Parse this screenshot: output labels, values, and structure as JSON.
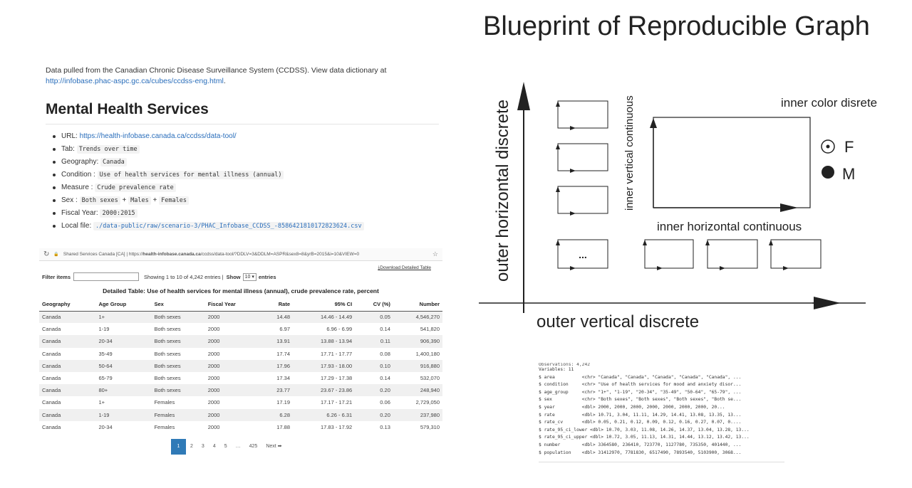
{
  "doc": {
    "intro_text": "Data pulled from the Canadian Chronic Disease Surveillance System (CCDSS). View data dictionary at ",
    "intro_link": "http://infobase.phac-aspc.gc.ca/cubes/ccdss-eng.html",
    "intro_end": ".",
    "heading": "Mental Health Services",
    "items": [
      {
        "label": "URL: ",
        "value": "https://health-infobase.canada.ca/ccdss/data-tool/",
        "kind": "link"
      },
      {
        "label": "Tab: ",
        "value": "Trends over time",
        "kind": "code"
      },
      {
        "label": "Geography: ",
        "value": "Canada",
        "kind": "code"
      },
      {
        "label": "Condition : ",
        "value": "Use of health services for mental illness (annual)",
        "kind": "code"
      },
      {
        "label": "Measure : ",
        "value": "Crude prevalence rate",
        "kind": "code"
      },
      {
        "label": "Sex : ",
        "value": "Both sexes",
        "kind": "code",
        "extra": [
          " + ",
          "Males",
          " + ",
          "Females"
        ]
      },
      {
        "label": "Fiscal Year: ",
        "value": "2000:2015",
        "kind": "code"
      },
      {
        "label": "Local file: ",
        "value": "./data-public/raw/scenario-3/PHAC_Infobase_CCDSS_-8586421810172823624.csv",
        "kind": "code-link"
      }
    ]
  },
  "browser": {
    "tab_site": "Shared Services Canada [CA]",
    "url_prefix": "https://",
    "url_host": "health-infobase.canada.ca",
    "url_path": "/ccdss/data-tool/?DDLV=3&DDLM=ASPR&sex8=8&yrB=2015&i=10&VIEW=0",
    "download_label": "Download Detailed Table",
    "filter_label": "Filter items",
    "showing_text": "Showing 1 to 10 of 4,242 entries |",
    "show_label": "Show",
    "show_value": "10",
    "entries_label": "entries",
    "table_title": "Detailed Table: Use of health services for mental illness (annual), crude prevalence rate, percent",
    "columns": [
      "Geography",
      "Age Group",
      "Sex",
      "Fiscal Year",
      "Rate",
      "95% CI",
      "CV (%)",
      "Number"
    ],
    "rows": [
      [
        "Canada",
        "1+",
        "Both sexes",
        "2000",
        "14.48",
        "14.46 - 14.49",
        "0.05",
        "4,546,270"
      ],
      [
        "Canada",
        "1-19",
        "Both sexes",
        "2000",
        "6.97",
        "6.96 - 6.99",
        "0.14",
        "541,820"
      ],
      [
        "Canada",
        "20-34",
        "Both sexes",
        "2000",
        "13.91",
        "13.88 - 13.94",
        "0.11",
        "906,390"
      ],
      [
        "Canada",
        "35-49",
        "Both sexes",
        "2000",
        "17.74",
        "17.71 - 17.77",
        "0.08",
        "1,400,180"
      ],
      [
        "Canada",
        "50-64",
        "Both sexes",
        "2000",
        "17.96",
        "17.93 - 18.00",
        "0.10",
        "916,880"
      ],
      [
        "Canada",
        "65-79",
        "Both sexes",
        "2000",
        "17.34",
        "17.29 - 17.38",
        "0.14",
        "532,070"
      ],
      [
        "Canada",
        "80+",
        "Both sexes",
        "2000",
        "23.77",
        "23.67 - 23.86",
        "0.20",
        "248,940"
      ],
      [
        "Canada",
        "1+",
        "Females",
        "2000",
        "17.19",
        "17.17 - 17.21",
        "0.06",
        "2,729,050"
      ],
      [
        "Canada",
        "1-19",
        "Females",
        "2000",
        "6.28",
        "6.26 - 6.31",
        "0.20",
        "237,980"
      ],
      [
        "Canada",
        "20-34",
        "Females",
        "2000",
        "17.88",
        "17.83 - 17.92",
        "0.13",
        "579,310"
      ]
    ],
    "pages": [
      "1",
      "2",
      "3",
      "4",
      "5",
      "…",
      "425"
    ],
    "next_label": "Next ➡"
  },
  "blueprint": {
    "title": "Blueprint of Reproducible Graph",
    "outer_vertical_axis": "outer horizontal discrete",
    "outer_horizontal_axis": "outer vertical discrete",
    "inner_vertical": "inner vertical continuous",
    "inner_horizontal": "inner horizontal continuous",
    "inner_color": "inner color disrete",
    "ellipsis": "...",
    "legend": [
      {
        "symbol": "⊙",
        "label": "F"
      },
      {
        "symbol": "●",
        "label": "M"
      }
    ]
  },
  "console": {
    "cut_line": "Observations: 4,242",
    "lines": [
      "Variables: 11",
      "$ area          <chr> \"Canada\", \"Canada\", \"Canada\", \"Canada\", \"Canada\", ...",
      "$ condition     <chr> \"Use of health services for mood and anxiety disor...",
      "$ age_group     <chr> \"1+\", \"1-19\", \"20-34\", \"35-49\", \"50-64\", \"65-79\", ...",
      "$ sex           <chr> \"Both sexes\", \"Both sexes\", \"Both sexes\", \"Both se...",
      "$ year          <dbl> 2000, 2000, 2000, 2000, 2000, 2000, 2000, 20...",
      "$ rate          <dbl> 10.71, 3.04, 11.11, 14.29, 14.41, 13.08, 13.35, 13...",
      "$ rate_cv       <dbl> 0.05, 0.21, 0.12, 0.09, 0.12, 0.16, 0.27, 0.07, 0....",
      "$ rate_95_ci_lower <dbl> 10.70, 3.03, 11.08, 14.26, 14.37, 13.04, 13.28, 13...",
      "$ rate_95_ci_upper <dbl> 10.72, 3.05, 11.13, 14.31, 14.44, 13.12, 13.42, 13...",
      "$ number        <dbl> 3364580, 236410, 723770, 1127780, 735350, 401440, ...",
      "$ population    <dbl> 31412970, 7781830, 6517490, 7893540, 5103900, 3068..."
    ]
  }
}
